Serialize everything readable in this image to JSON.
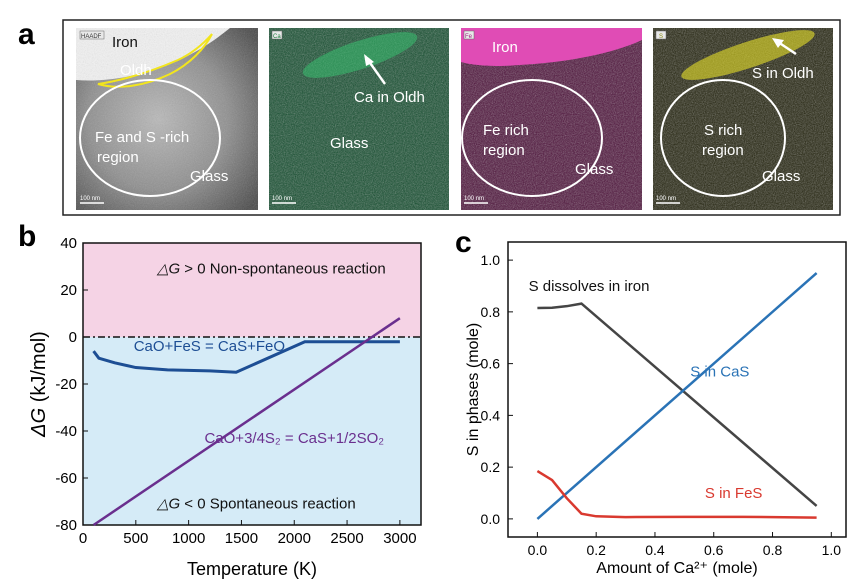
{
  "panel_a": {
    "letter": "a",
    "images": [
      {
        "badge": "HAADF",
        "scale": "100 nm",
        "labels": {
          "iron": "Iron",
          "oldh": "Oldh",
          "region": [
            "Fe and S -rich",
            "region"
          ],
          "glass": "Glass"
        }
      },
      {
        "badge": "Ca",
        "scale": "100 nm",
        "labels": {
          "arrow": "Ca in Oldh",
          "glass": "Glass"
        }
      },
      {
        "badge": "Fe",
        "scale": "100 nm",
        "labels": {
          "iron": "Iron",
          "region": [
            "Fe rich",
            "region"
          ],
          "glass": "Glass"
        }
      },
      {
        "badge": "S",
        "scale": "100 nm",
        "labels": {
          "arrow": "S in Oldh",
          "region": [
            "S rich",
            "region"
          ],
          "glass": "Glass"
        }
      }
    ],
    "colors": {
      "haadf": "#9a9a9a",
      "ca": "#1f8a4a",
      "fe": "#c0268f",
      "s": "#d9d420"
    }
  },
  "chart_data": [
    {
      "panel": "b",
      "type": "line",
      "xlabel": "Temperature (K)",
      "ylabel_symbol": "ΔG",
      "ylabel_unit": " (kJ/mol)",
      "xlim": [
        0,
        3200
      ],
      "ylim": [
        -80,
        40
      ],
      "xticks": [
        0,
        500,
        1000,
        1500,
        2000,
        2500,
        3000
      ],
      "yticks": [
        40,
        20,
        0,
        -20,
        -40,
        -60,
        -80
      ],
      "regions": [
        {
          "range": [
            0,
            40
          ],
          "color": "#f5d3e5",
          "text_symbol": "△G",
          "text": " > 0 Non-spontaneous reaction"
        },
        {
          "range": [
            -80,
            0
          ],
          "color": "#d5ebf7",
          "text_symbol": "△G",
          "text": " < 0 Spontaneous reaction"
        }
      ],
      "series": [
        {
          "name": "CaO+FeS = CaS+FeO",
          "color": "#1d4e94",
          "x": [
            100,
            150,
            300,
            500,
            800,
            1000,
            1200,
            1450,
            2100,
            2500,
            3000
          ],
          "y": [
            -6,
            -9,
            -11,
            -13,
            -14,
            -14.2,
            -14.4,
            -15,
            -2,
            -2,
            -2
          ]
        },
        {
          "name": "CaO+3/4S₂ = CaS+1/2SO₂",
          "color": "#6a2f8e",
          "x": [
            100,
            3000
          ],
          "y": [
            -80,
            8
          ]
        }
      ],
      "zero_line": 0
    },
    {
      "panel": "c",
      "type": "line",
      "xlabel": "Amount of Ca²⁺ (mole)",
      "ylabel": "S in phases (mole)",
      "xlim": [
        -0.1,
        1.05
      ],
      "ylim": [
        -0.07,
        1.07
      ],
      "xticks": [
        0.0,
        0.2,
        0.4,
        0.6,
        0.8,
        1.0
      ],
      "yticks": [
        0.0,
        0.2,
        0.4,
        0.6,
        0.8,
        1.0
      ],
      "series": [
        {
          "name": "S dissolves in iron",
          "color": "#454545",
          "x": [
            0.0,
            0.05,
            0.1,
            0.15,
            0.95
          ],
          "y": [
            0.815,
            0.816,
            0.822,
            0.832,
            0.05
          ]
        },
        {
          "name": "S in CaS",
          "color": "#2a73b6",
          "x": [
            0.0,
            0.95
          ],
          "y": [
            0.0,
            0.95
          ]
        },
        {
          "name": "S in FeS",
          "color": "#d9392f",
          "x": [
            0.0,
            0.05,
            0.1,
            0.15,
            0.2,
            0.3,
            0.5,
            0.7,
            0.95
          ],
          "y": [
            0.185,
            0.15,
            0.08,
            0.02,
            0.01,
            0.007,
            0.008,
            0.008,
            0.005
          ]
        }
      ]
    }
  ]
}
